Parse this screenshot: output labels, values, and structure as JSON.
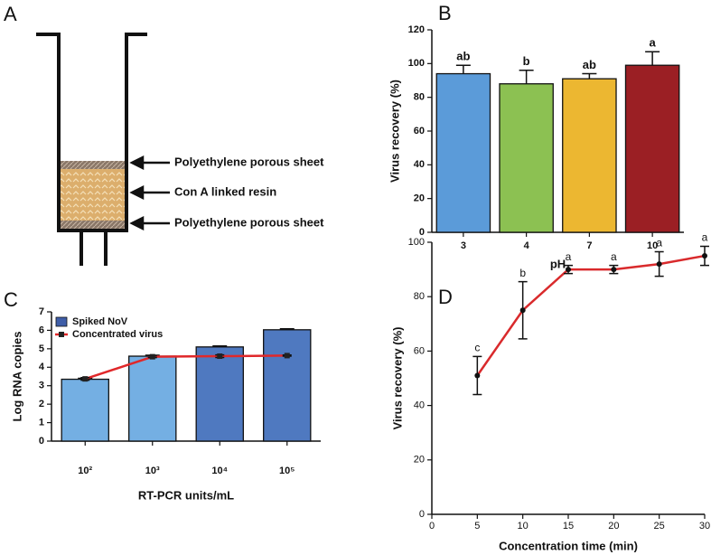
{
  "diagram": {
    "panel": "A",
    "labels": [
      "Polyethylene porous sheet",
      "Con A linked resin",
      "Polyethylene porous sheet"
    ]
  },
  "chart_data": [
    {
      "panel": "B",
      "type": "bar",
      "categories": [
        "3",
        "4",
        "7",
        "10"
      ],
      "values": [
        94,
        88,
        91,
        99
      ],
      "errors": [
        5,
        8,
        3,
        8
      ],
      "annotations": [
        "ab",
        "b",
        "ab",
        "a"
      ],
      "colors": [
        "#5b9bd9",
        "#8cc152",
        "#ecb731",
        "#9b1f24"
      ],
      "ylim": [
        0,
        120
      ],
      "yticks": [
        0,
        20,
        40,
        60,
        80,
        100,
        120
      ],
      "ylabel": "Virus recovery (%)",
      "xlabel": "pH"
    },
    {
      "panel": "C",
      "type": "bar_line",
      "categories": [
        "10²",
        "10³",
        "10⁴",
        "10⁵"
      ],
      "series": [
        {
          "name": "Spiked NoV",
          "type": "bar",
          "color": "#3f5ea8",
          "colors": [
            "#74afe3",
            "#74afe3",
            "#4f79c0",
            "#4f79c0"
          ],
          "values": [
            3.35,
            4.6,
            5.1,
            6.03
          ],
          "errors": [
            0.05,
            0.05,
            0.05,
            0.05
          ]
        },
        {
          "name": "Concentrated virus",
          "type": "line",
          "color": "#e0282a",
          "values": [
            3.37,
            4.57,
            4.6,
            4.63
          ],
          "errors": [
            0.07,
            0.05,
            0.07,
            0.03
          ]
        }
      ],
      "ylim": [
        0,
        7
      ],
      "yticks": [
        0,
        1,
        2,
        3,
        4,
        5,
        6,
        7
      ],
      "ylabel": "Log RNA copies",
      "xlabel": "RT-PCR units/mL"
    },
    {
      "panel": "D",
      "type": "line",
      "x": [
        5,
        10,
        15,
        20,
        25,
        30
      ],
      "values": [
        51,
        75,
        90,
        90,
        92,
        95
      ],
      "errors": [
        7,
        10.5,
        1.5,
        1.5,
        4.5,
        3.5
      ],
      "annotations": [
        "c",
        "b",
        "a",
        "a",
        "a",
        "a"
      ],
      "color": "#d92a2c",
      "xlim": [
        0,
        30
      ],
      "xticks": [
        0,
        5,
        10,
        15,
        20,
        25,
        30
      ],
      "ylim": [
        0,
        100
      ],
      "yticks": [
        0,
        20,
        40,
        60,
        80,
        100
      ],
      "ylabel": "Virus recovery (%)",
      "xlabel": "Concentration time (min)"
    }
  ]
}
